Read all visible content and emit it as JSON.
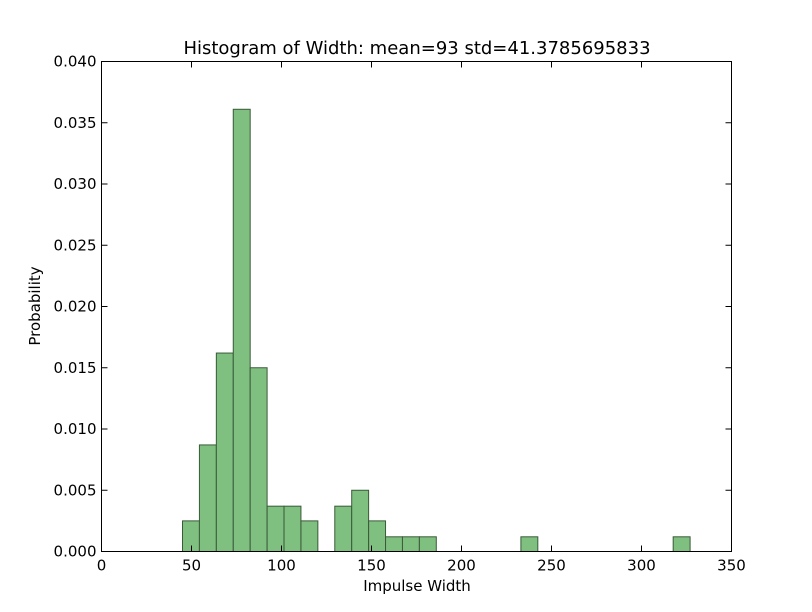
{
  "chart_data": {
    "type": "bar",
    "title": "Histogram of Width: mean=93 std=41.3785695833",
    "xlabel": "Impulse Width",
    "ylabel": "Probability",
    "xlim": [
      0,
      350
    ],
    "ylim": [
      0,
      0.04
    ],
    "xticks": [
      "0",
      "50",
      "100",
      "150",
      "200",
      "250",
      "300",
      "350"
    ],
    "yticks": [
      "0.000",
      "0.005",
      "0.010",
      "0.015",
      "0.020",
      "0.025",
      "0.030",
      "0.035",
      "0.040"
    ],
    "grid": false,
    "bin_width": 9.4,
    "bins": [
      {
        "x0": 45.0,
        "x1": 54.4,
        "value": 0.0025
      },
      {
        "x0": 54.4,
        "x1": 63.8,
        "value": 0.0087
      },
      {
        "x0": 63.8,
        "x1": 73.2,
        "value": 0.0162
      },
      {
        "x0": 73.2,
        "x1": 82.6,
        "value": 0.0361
      },
      {
        "x0": 82.6,
        "x1": 92.0,
        "value": 0.015
      },
      {
        "x0": 92.0,
        "x1": 101.4,
        "value": 0.0037
      },
      {
        "x0": 101.4,
        "x1": 110.8,
        "value": 0.0037
      },
      {
        "x0": 110.8,
        "x1": 120.2,
        "value": 0.0025
      },
      {
        "x0": 129.6,
        "x1": 139.0,
        "value": 0.0037
      },
      {
        "x0": 139.0,
        "x1": 148.4,
        "value": 0.005
      },
      {
        "x0": 148.4,
        "x1": 157.8,
        "value": 0.0025
      },
      {
        "x0": 157.8,
        "x1": 167.2,
        "value": 0.0012
      },
      {
        "x0": 167.2,
        "x1": 176.6,
        "value": 0.0012
      },
      {
        "x0": 176.6,
        "x1": 186.0,
        "value": 0.0012
      },
      {
        "x0": 233.0,
        "x1": 242.4,
        "value": 0.0012
      },
      {
        "x0": 317.6,
        "x1": 327.0,
        "value": 0.0012
      }
    ],
    "colors": {
      "bar_fill": "#7fbf7f",
      "bar_edge": "#3a5a3a"
    }
  }
}
